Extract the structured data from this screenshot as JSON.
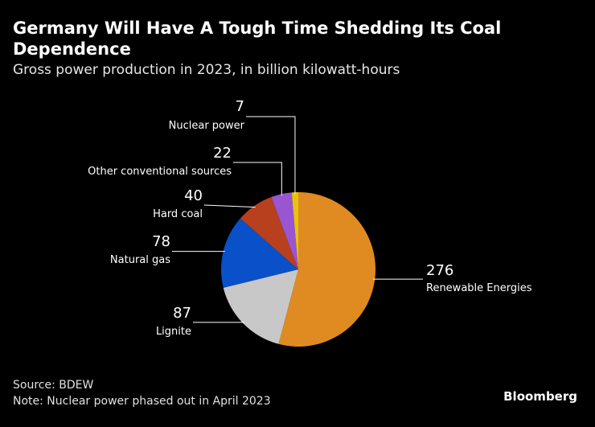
{
  "header": {
    "title": "Germany Will Have A Tough Time Shedding Its Coal Dependence",
    "subtitle": "Gross power production in 2023, in billion kilowatt-hours"
  },
  "footer": {
    "source": "Source: BDEW",
    "note": "Note: Nuclear power phased out in April 2023",
    "brand": "Bloomberg"
  },
  "chart_data": {
    "type": "pie",
    "title": "Germany Will Have A Tough Time Shedding Its Coal Dependence",
    "subtitle": "Gross power production in 2023, in billion kilowatt-hours",
    "unit": "billion kilowatt-hours",
    "slices": [
      {
        "label": "Renewable Energies",
        "value": 276,
        "color": "#e08a22"
      },
      {
        "label": "Lignite",
        "value": 87,
        "color": "#c8c8c8"
      },
      {
        "label": "Natural gas",
        "value": 78,
        "color": "#0a50c8"
      },
      {
        "label": "Hard coal",
        "value": 40,
        "color": "#b8401e"
      },
      {
        "label": "Other conventional sources",
        "value": 22,
        "color": "#9a55d0"
      },
      {
        "label": "Nuclear power",
        "value": 7,
        "color": "#e6c40c"
      }
    ],
    "label_side": [
      "right",
      "left",
      "left",
      "left",
      "left",
      "left"
    ]
  }
}
